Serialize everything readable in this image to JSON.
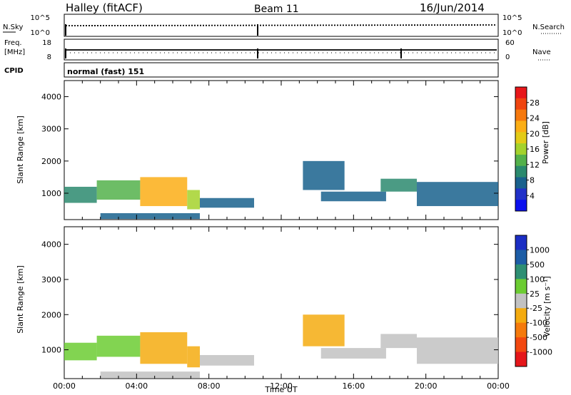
{
  "header": {
    "title": "Halley (fitACF)",
    "beam": "Beam 11",
    "date": "16/Jun/2014"
  },
  "noise_panel": {
    "left_label": "N.Sky",
    "left_ticks": [
      "10^5",
      "10^0"
    ],
    "right_label": "N.Search",
    "right_ticks": [
      "10^5",
      "10^0"
    ]
  },
  "freq_panel": {
    "left_label_1": "Freq.",
    "left_label_2": "[MHz]",
    "left_ticks": [
      "18",
      "8"
    ],
    "right_label": "Nave",
    "right_ticks": [
      "60",
      "0"
    ]
  },
  "cpid": {
    "label": "CPID",
    "value": "normal (fast) 151"
  },
  "chart_data": [
    {
      "type": "heatmap",
      "quantity": "power",
      "ylabel": "Slant Range [km]",
      "xlabel": "",
      "xlim": [
        0,
        24
      ],
      "ylim": [
        180,
        4500
      ],
      "y_ticks": [
        1000,
        2000,
        3000,
        4000
      ],
      "colorbar_label": "Power [dB]",
      "colorbar_ticks": [
        "28",
        "24",
        "20",
        "16",
        "12",
        "8",
        "4"
      ],
      "colorbar_colors": [
        "#e8171a",
        "#f04510",
        "#f6790e",
        "#fbae16",
        "#e3cb17",
        "#a4d22c",
        "#54b14b",
        "#2b8a6e",
        "#19618d",
        "#2131c8",
        "#0b10ee"
      ],
      "colorbar_range": [
        0,
        30
      ],
      "regions": [
        {
          "t": [
            0,
            1.8
          ],
          "r": [
            700,
            1200
          ],
          "v": 10
        },
        {
          "t": [
            1.8,
            4.2
          ],
          "r": [
            800,
            1400
          ],
          "v": 12
        },
        {
          "t": [
            4.2,
            6.8
          ],
          "r": [
            600,
            1500
          ],
          "v": 21
        },
        {
          "t": [
            6.8,
            7.5
          ],
          "r": [
            500,
            1100
          ],
          "v": 14
        },
        {
          "t": [
            7.5,
            10.5
          ],
          "r": [
            550,
            850
          ],
          "v": 8
        },
        {
          "t": [
            2,
            7.5
          ],
          "r": [
            200,
            380
          ],
          "v": 7
        },
        {
          "t": [
            13.2,
            15.5
          ],
          "r": [
            1100,
            2000
          ],
          "v": 6
        },
        {
          "t": [
            14.2,
            17.8
          ],
          "r": [
            750,
            1050
          ],
          "v": 8
        },
        {
          "t": [
            17.5,
            19.5
          ],
          "r": [
            1050,
            1450
          ],
          "v": 10
        },
        {
          "t": [
            19.5,
            24
          ],
          "r": [
            600,
            1350
          ],
          "v": 7
        }
      ]
    },
    {
      "type": "heatmap",
      "quantity": "velocity",
      "ylabel": "Slant Range [km]",
      "xlabel": "Time UT",
      "xlim": [
        0,
        24
      ],
      "ylim": [
        180,
        4500
      ],
      "y_ticks": [
        1000,
        2000,
        3000,
        4000
      ],
      "x_ticks": [
        "00:00",
        "04:00",
        "08:00",
        "12:00",
        "16:00",
        "20:00",
        "00:00"
      ],
      "colorbar_label": "Velocity [m s⁻¹]",
      "colorbar_ticks": [
        "1000",
        "500",
        "100",
        "25",
        "-25",
        "-100",
        "-500",
        "-1000"
      ],
      "colorbar_colors": [
        "#1b2ec4",
        "#1d5da6",
        "#2e8f73",
        "#6ccc32",
        "#c2c2c2",
        "#f4ab10",
        "#f57a0c",
        "#f24810",
        "#e5161a"
      ],
      "colorbar_range": [
        -1200,
        1200
      ],
      "regions": [
        {
          "t": [
            0,
            1.8
          ],
          "r": [
            700,
            1200
          ],
          "v": 300
        },
        {
          "t": [
            1.8,
            4.2
          ],
          "r": [
            800,
            1400
          ],
          "v": 350
        },
        {
          "t": [
            4.2,
            6.8
          ],
          "r": [
            600,
            1500
          ],
          "v": -180
        },
        {
          "t": [
            6.8,
            7.5
          ],
          "r": [
            500,
            1100
          ],
          "v": -150
        },
        {
          "t": [
            7.5,
            10.5
          ],
          "r": [
            550,
            850
          ],
          "v": 0
        },
        {
          "t": [
            2,
            7.5
          ],
          "r": [
            200,
            380
          ],
          "v": 0
        },
        {
          "t": [
            13.2,
            15.5
          ],
          "r": [
            1100,
            2000
          ],
          "v": -150
        },
        {
          "t": [
            14.2,
            17.8
          ],
          "r": [
            750,
            1050
          ],
          "v": 80
        },
        {
          "t": [
            17.5,
            19.5
          ],
          "r": [
            1050,
            1450
          ],
          "v": 80
        },
        {
          "t": [
            19.5,
            24
          ],
          "r": [
            600,
            1350
          ],
          "v": 70
        }
      ]
    }
  ]
}
